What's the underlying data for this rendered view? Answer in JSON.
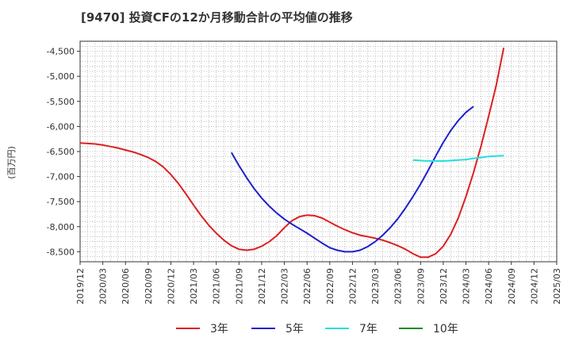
{
  "chart_data": {
    "type": "line",
    "title": "[9470]  投資CFの12か月移動合計の平均値の推移",
    "ylabel": "(百万円)",
    "xlabel": "",
    "x_ticks": [
      "2019/12",
      "2020/03",
      "2020/06",
      "2020/09",
      "2020/12",
      "2021/03",
      "2021/06",
      "2021/09",
      "2021/12",
      "2022/03",
      "2022/06",
      "2022/09",
      "2022/12",
      "2023/03",
      "2023/06",
      "2023/09",
      "2023/12",
      "2024/03",
      "2024/06",
      "2024/09",
      "2024/12",
      "2025/03"
    ],
    "y_ticks": [
      -4500,
      -5000,
      -5500,
      -6000,
      -6500,
      -7000,
      -7500,
      -8000,
      -8500
    ],
    "y_tick_labels": [
      "-4,500",
      "-5,000",
      "-5,500",
      "-6,000",
      "-6,500",
      "-7,000",
      "-7,500",
      "-8,000",
      "-8,500"
    ],
    "ylim": [
      -8700,
      -4300
    ],
    "grid": true,
    "legend_position": "bottom",
    "series": [
      {
        "name": "3年",
        "color": "#dd1f1f",
        "points": [
          [
            "2019/12",
            -6330
          ],
          [
            "2020/01",
            -6340
          ],
          [
            "2020/02",
            -6350
          ],
          [
            "2020/03",
            -6370
          ],
          [
            "2020/04",
            -6400
          ],
          [
            "2020/05",
            -6430
          ],
          [
            "2020/06",
            -6470
          ],
          [
            "2020/07",
            -6510
          ],
          [
            "2020/08",
            -6560
          ],
          [
            "2020/09",
            -6620
          ],
          [
            "2020/10",
            -6700
          ],
          [
            "2020/11",
            -6810
          ],
          [
            "2020/12",
            -6960
          ],
          [
            "2021/01",
            -7140
          ],
          [
            "2021/02",
            -7350
          ],
          [
            "2021/03",
            -7570
          ],
          [
            "2021/04",
            -7780
          ],
          [
            "2021/05",
            -7970
          ],
          [
            "2021/06",
            -8130
          ],
          [
            "2021/07",
            -8270
          ],
          [
            "2021/08",
            -8380
          ],
          [
            "2021/09",
            -8450
          ],
          [
            "2021/10",
            -8470
          ],
          [
            "2021/11",
            -8450
          ],
          [
            "2021/12",
            -8390
          ],
          [
            "2022/01",
            -8300
          ],
          [
            "2022/02",
            -8180
          ],
          [
            "2022/03",
            -8020
          ],
          [
            "2022/04",
            -7880
          ],
          [
            "2022/05",
            -7800
          ],
          [
            "2022/06",
            -7770
          ],
          [
            "2022/07",
            -7780
          ],
          [
            "2022/08",
            -7830
          ],
          [
            "2022/09",
            -7910
          ],
          [
            "2022/10",
            -7990
          ],
          [
            "2022/11",
            -8060
          ],
          [
            "2022/12",
            -8120
          ],
          [
            "2023/01",
            -8170
          ],
          [
            "2023/02",
            -8200
          ],
          [
            "2023/03",
            -8230
          ],
          [
            "2023/04",
            -8270
          ],
          [
            "2023/05",
            -8320
          ],
          [
            "2023/06",
            -8380
          ],
          [
            "2023/07",
            -8450
          ],
          [
            "2023/08",
            -8540
          ],
          [
            "2023/09",
            -8610
          ],
          [
            "2023/10",
            -8610
          ],
          [
            "2023/11",
            -8540
          ],
          [
            "2023/12",
            -8390
          ],
          [
            "2024/01",
            -8150
          ],
          [
            "2024/02",
            -7820
          ],
          [
            "2024/03",
            -7400
          ],
          [
            "2024/04",
            -6920
          ],
          [
            "2024/05",
            -6390
          ],
          [
            "2024/06",
            -5800
          ],
          [
            "2024/07",
            -5180
          ],
          [
            "2024/08",
            -4430
          ]
        ]
      },
      {
        "name": "5年",
        "color": "#1f1fcc",
        "points": [
          [
            "2021/08",
            -6520
          ],
          [
            "2021/09",
            -6780
          ],
          [
            "2021/10",
            -7020
          ],
          [
            "2021/11",
            -7240
          ],
          [
            "2021/12",
            -7430
          ],
          [
            "2022/01",
            -7590
          ],
          [
            "2022/02",
            -7730
          ],
          [
            "2022/03",
            -7850
          ],
          [
            "2022/04",
            -7950
          ],
          [
            "2022/05",
            -8040
          ],
          [
            "2022/06",
            -8130
          ],
          [
            "2022/07",
            -8230
          ],
          [
            "2022/08",
            -8330
          ],
          [
            "2022/09",
            -8420
          ],
          [
            "2022/10",
            -8470
          ],
          [
            "2022/11",
            -8500
          ],
          [
            "2022/12",
            -8500
          ],
          [
            "2023/01",
            -8470
          ],
          [
            "2023/02",
            -8400
          ],
          [
            "2023/03",
            -8300
          ],
          [
            "2023/04",
            -8170
          ],
          [
            "2023/05",
            -8020
          ],
          [
            "2023/06",
            -7840
          ],
          [
            "2023/07",
            -7630
          ],
          [
            "2023/08",
            -7400
          ],
          [
            "2023/09",
            -7150
          ],
          [
            "2023/10",
            -6880
          ],
          [
            "2023/11",
            -6590
          ],
          [
            "2023/12",
            -6320
          ],
          [
            "2024/01",
            -6080
          ],
          [
            "2024/02",
            -5880
          ],
          [
            "2024/03",
            -5720
          ],
          [
            "2024/04",
            -5600
          ]
        ]
      },
      {
        "name": "7年",
        "color": "#22e0e0",
        "points": [
          [
            "2023/08",
            -6670
          ],
          [
            "2023/09",
            -6680
          ],
          [
            "2023/10",
            -6690
          ],
          [
            "2023/11",
            -6690
          ],
          [
            "2023/12",
            -6690
          ],
          [
            "2024/01",
            -6680
          ],
          [
            "2024/02",
            -6670
          ],
          [
            "2024/03",
            -6660
          ],
          [
            "2024/04",
            -6640
          ],
          [
            "2024/05",
            -6620
          ],
          [
            "2024/06",
            -6600
          ],
          [
            "2024/07",
            -6590
          ],
          [
            "2024/08",
            -6580
          ]
        ]
      },
      {
        "name": "10年",
        "color": "#228b22",
        "points": []
      }
    ]
  }
}
